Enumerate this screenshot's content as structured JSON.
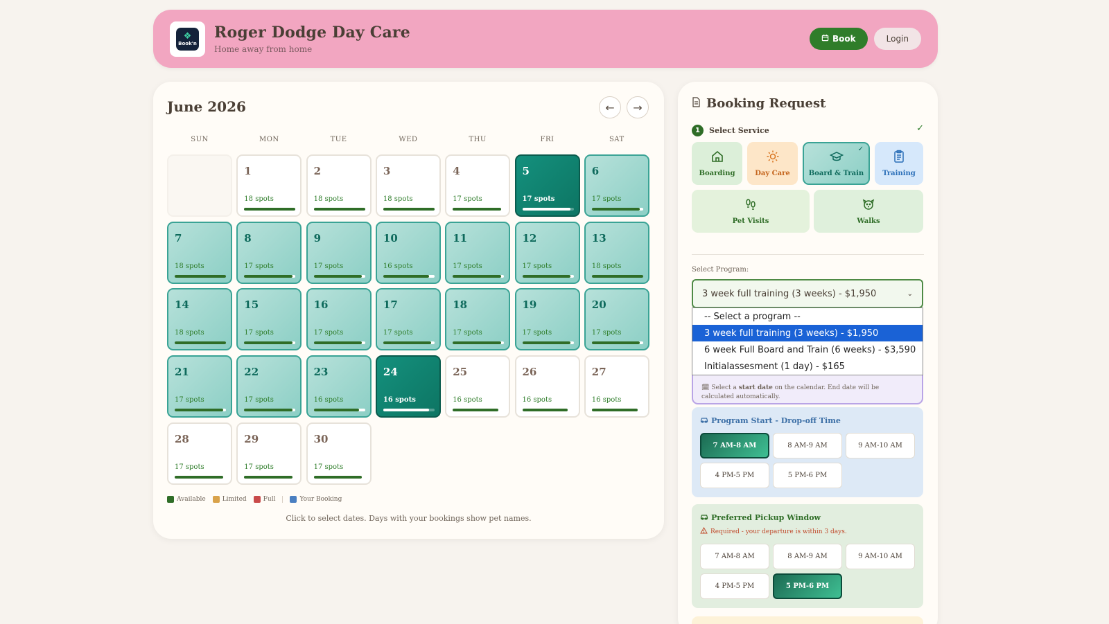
{
  "header": {
    "logo_text": "Book'n",
    "title": "Roger Dodge Day Care",
    "subtitle": "Home away from home",
    "book_label": "Book",
    "login_label": "Login"
  },
  "calendar": {
    "month_title": "June 2026",
    "prev_label": "←",
    "next_label": "→",
    "weekdays": [
      "SUN",
      "MON",
      "TUE",
      "WED",
      "THU",
      "FRI",
      "SAT"
    ],
    "days": [
      {
        "num": "1",
        "spots": "18 spots",
        "fill": 1.0,
        "state": "normal"
      },
      {
        "num": "2",
        "spots": "18 spots",
        "fill": 1.0,
        "state": "normal"
      },
      {
        "num": "3",
        "spots": "18 spots",
        "fill": 1.0,
        "state": "normal"
      },
      {
        "num": "4",
        "spots": "17 spots",
        "fill": 0.94,
        "state": "normal"
      },
      {
        "num": "5",
        "spots": "17 spots",
        "fill": 0.94,
        "state": "active"
      },
      {
        "num": "6",
        "spots": "17 spots",
        "fill": 0.94,
        "state": "selected"
      },
      {
        "num": "7",
        "spots": "18 spots",
        "fill": 1.0,
        "state": "selected"
      },
      {
        "num": "8",
        "spots": "17 spots",
        "fill": 0.94,
        "state": "selected"
      },
      {
        "num": "9",
        "spots": "17 spots",
        "fill": 0.94,
        "state": "selected"
      },
      {
        "num": "10",
        "spots": "16 spots",
        "fill": 0.89,
        "state": "selected"
      },
      {
        "num": "11",
        "spots": "17 spots",
        "fill": 0.94,
        "state": "selected"
      },
      {
        "num": "12",
        "spots": "17 spots",
        "fill": 0.94,
        "state": "selected"
      },
      {
        "num": "13",
        "spots": "18 spots",
        "fill": 1.0,
        "state": "selected"
      },
      {
        "num": "14",
        "spots": "18 spots",
        "fill": 1.0,
        "state": "selected"
      },
      {
        "num": "15",
        "spots": "17 spots",
        "fill": 0.94,
        "state": "selected"
      },
      {
        "num": "16",
        "spots": "17 spots",
        "fill": 0.94,
        "state": "selected"
      },
      {
        "num": "17",
        "spots": "17 spots",
        "fill": 0.94,
        "state": "selected"
      },
      {
        "num": "18",
        "spots": "17 spots",
        "fill": 0.94,
        "state": "selected"
      },
      {
        "num": "19",
        "spots": "17 spots",
        "fill": 0.94,
        "state": "selected"
      },
      {
        "num": "20",
        "spots": "17 spots",
        "fill": 0.94,
        "state": "selected"
      },
      {
        "num": "21",
        "spots": "17 spots",
        "fill": 0.94,
        "state": "selected"
      },
      {
        "num": "22",
        "spots": "17 spots",
        "fill": 0.94,
        "state": "selected"
      },
      {
        "num": "23",
        "spots": "16 spots",
        "fill": 0.89,
        "state": "selected"
      },
      {
        "num": "24",
        "spots": "16 spots",
        "fill": 0.89,
        "state": "active"
      },
      {
        "num": "25",
        "spots": "16 spots",
        "fill": 0.89,
        "state": "normal"
      },
      {
        "num": "26",
        "spots": "16 spots",
        "fill": 0.89,
        "state": "normal"
      },
      {
        "num": "27",
        "spots": "16 spots",
        "fill": 0.89,
        "state": "normal"
      },
      {
        "num": "28",
        "spots": "17 spots",
        "fill": 0.94,
        "state": "normal"
      },
      {
        "num": "29",
        "spots": "17 spots",
        "fill": 0.94,
        "state": "normal"
      },
      {
        "num": "30",
        "spots": "17 spots",
        "fill": 0.94,
        "state": "normal"
      }
    ],
    "legend": [
      {
        "label": "Available",
        "color": "#2f6d27"
      },
      {
        "label": "Limited",
        "color": "#d9a24a"
      },
      {
        "label": "Full",
        "color": "#c94a4a"
      },
      {
        "label": "Your Booking",
        "color": "#4a7fc1"
      }
    ],
    "hint": "Click to select dates. Days with your bookings show pet names."
  },
  "booking": {
    "title": "Booking Request",
    "step_number": "1",
    "step_label": "Select Service",
    "services": [
      {
        "label": "Boarding",
        "icon": "house-icon"
      },
      {
        "label": "Day Care",
        "icon": "sun-icon"
      },
      {
        "label": "Board & Train",
        "icon": "graduation-cap-icon",
        "selected": true
      },
      {
        "label": "Training",
        "icon": "clipboard-icon"
      },
      {
        "label": "Pet Visits",
        "icon": "footprints-icon"
      },
      {
        "label": "Walks",
        "icon": "dog-icon"
      }
    ],
    "program_label": "Select Program:",
    "program_selected": "3 week full training (3 weeks) - $1,950",
    "program_options": [
      "-- Select a program --",
      "3 week full training (3 weeks) - $1,950",
      "6 week Full Board and Train (6 weeks) - $3,590",
      "Initialassesment (1 day) - $165"
    ],
    "start_note_prefix": "Select a ",
    "start_note_bold": "start date",
    "start_note_suffix": " on the calendar. End date will be calculated automatically.",
    "dropoff_title": "Program Start - Drop-off Time",
    "dropoff_slots": [
      "7 AM-8 AM",
      "8 AM-9 AM",
      "9 AM-10 AM",
      "4 PM-5 PM",
      "5 PM-6 PM"
    ],
    "dropoff_selected": "7 AM-8 AM",
    "pickup_title": "Preferred Pickup Window",
    "pickup_warning": "Required - your departure is within 3 days.",
    "pickup_slots": [
      "7 AM-8 AM",
      "8 AM-9 AM",
      "9 AM-10 AM",
      "4 PM-5 PM",
      "5 PM-6 PM"
    ],
    "pickup_selected": "5 PM-6 PM"
  }
}
